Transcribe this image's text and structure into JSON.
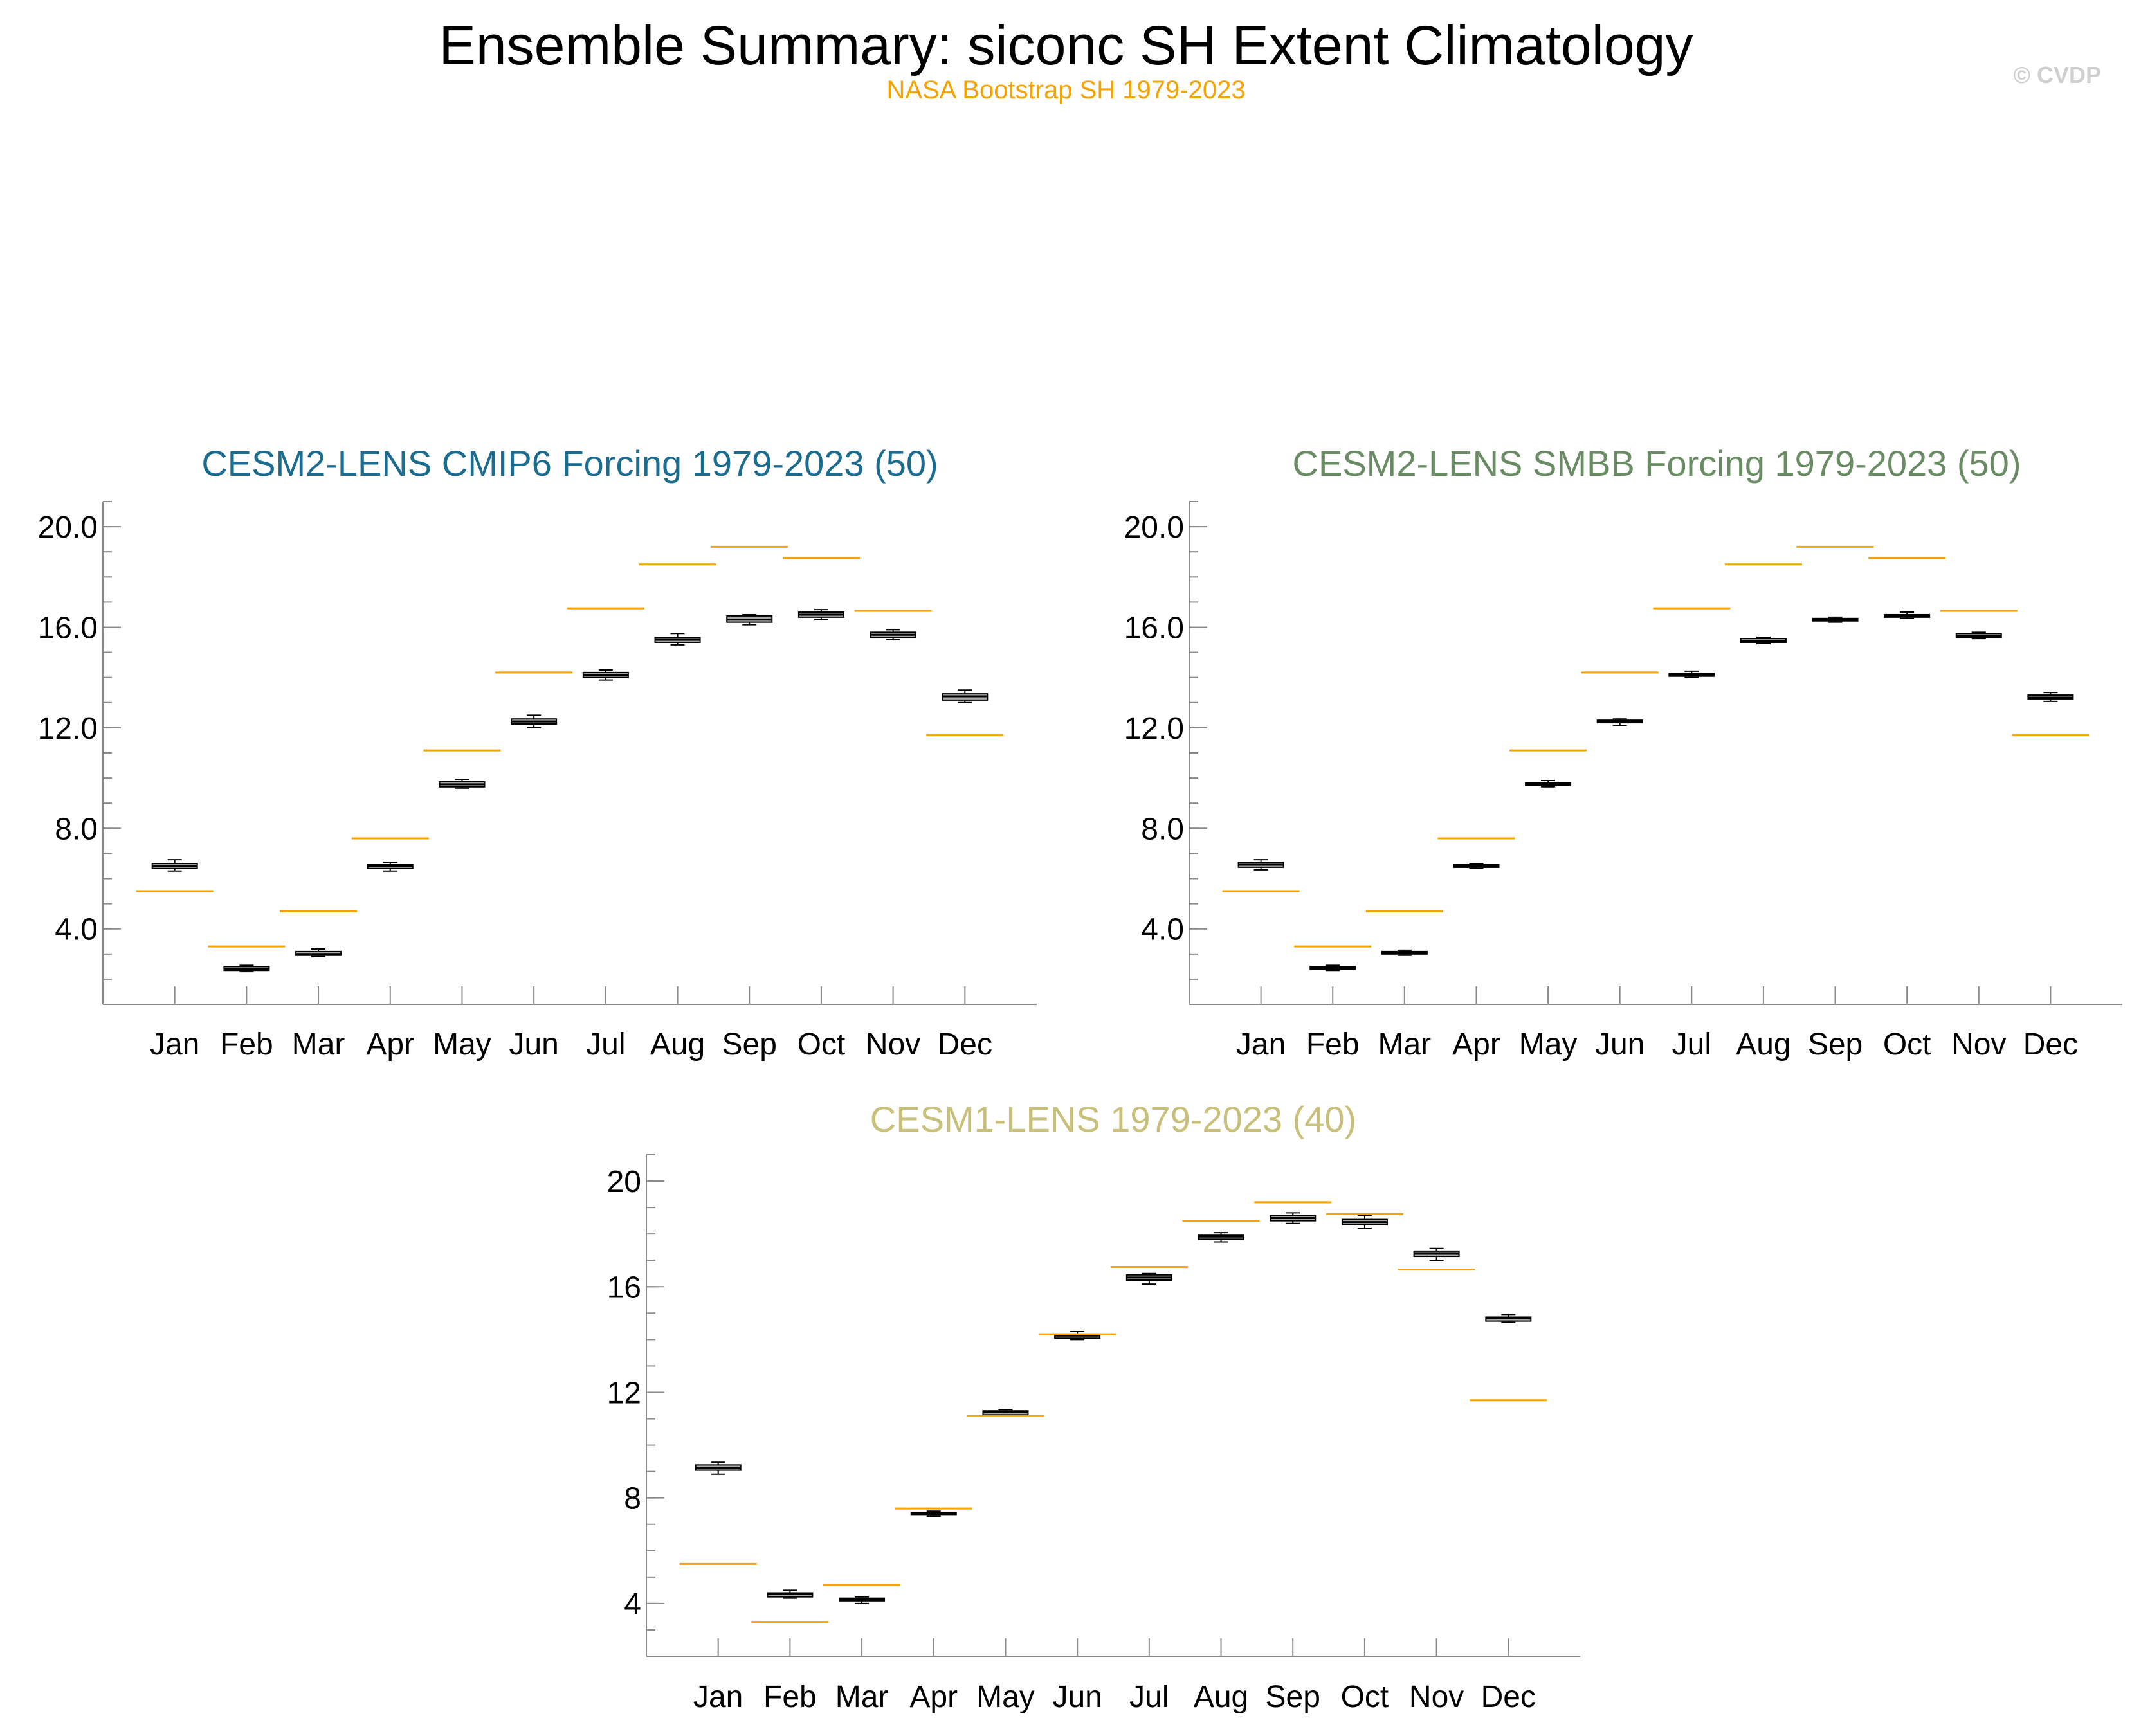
{
  "title": "Ensemble Summary: siconc SH Extent Climatology",
  "subtitle": "NASA Bootstrap SH 1979-2023",
  "watermark": "© CVDP",
  "colors": {
    "observation": "#f5a300",
    "subtitle": "#f5a300",
    "watermark": "#cfcfcf",
    "panel1_title": "#1b6c8f",
    "panel2_title": "#6a8c64",
    "panel3_title": "#c8c07a",
    "box_fill": "#a8a8a8",
    "axis": "#8a8a8a"
  },
  "chart_data": [
    {
      "type": "box",
      "title": "CESM2-LENS CMIP6 Forcing 1979-2023 (50)",
      "xlabel": "",
      "ylabel": "",
      "categories": [
        "Jan",
        "Feb",
        "Mar",
        "Apr",
        "May",
        "Jun",
        "Jul",
        "Aug",
        "Sep",
        "Oct",
        "Nov",
        "Dec"
      ],
      "ylim": [
        1.0,
        21.0
      ],
      "yticks": [
        4.0,
        8.0,
        12.0,
        16.0,
        20.0
      ],
      "ytick_labels": [
        "4.0",
        "8.0",
        "12.0",
        "16.0",
        "20.0"
      ],
      "series": [
        {
          "stat": "min",
          "values": [
            6.3,
            2.3,
            2.9,
            6.3,
            9.6,
            12.0,
            13.9,
            15.3,
            16.1,
            16.3,
            15.5,
            13.0
          ]
        },
        {
          "stat": "q1",
          "values": [
            6.4,
            2.35,
            2.95,
            6.4,
            9.65,
            12.15,
            14.0,
            15.4,
            16.2,
            16.4,
            15.6,
            13.1
          ]
        },
        {
          "stat": "median",
          "values": [
            6.5,
            2.4,
            3.0,
            6.5,
            9.75,
            12.25,
            14.1,
            15.5,
            16.3,
            16.5,
            15.7,
            13.25
          ]
        },
        {
          "stat": "q3",
          "values": [
            6.6,
            2.5,
            3.1,
            6.55,
            9.85,
            12.35,
            14.2,
            15.6,
            16.45,
            16.6,
            15.8,
            13.35
          ]
        },
        {
          "stat": "max",
          "values": [
            6.75,
            2.55,
            3.2,
            6.65,
            9.95,
            12.5,
            14.3,
            15.75,
            16.5,
            16.7,
            15.9,
            13.5
          ]
        },
        {
          "name": "NASA Bootstrap SH 1979-2023",
          "values": [
            5.5,
            3.3,
            4.7,
            7.6,
            11.1,
            14.2,
            16.75,
            18.5,
            19.2,
            18.75,
            16.65,
            11.7
          ]
        }
      ]
    },
    {
      "type": "box",
      "title": "CESM2-LENS SMBB Forcing 1979-2023 (50)",
      "xlabel": "",
      "ylabel": "",
      "categories": [
        "Jan",
        "Feb",
        "Mar",
        "Apr",
        "May",
        "Jun",
        "Jul",
        "Aug",
        "Sep",
        "Oct",
        "Nov",
        "Dec"
      ],
      "ylim": [
        1.0,
        21.0
      ],
      "yticks": [
        4.0,
        8.0,
        12.0,
        16.0,
        20.0
      ],
      "ytick_labels": [
        "4.0",
        "8.0",
        "12.0",
        "16.0",
        "20.0"
      ],
      "series": [
        {
          "stat": "min",
          "values": [
            6.35,
            2.35,
            2.95,
            6.4,
            9.65,
            12.1,
            14.0,
            15.35,
            16.2,
            16.35,
            15.55,
            13.05
          ]
        },
        {
          "stat": "q1",
          "values": [
            6.45,
            2.4,
            3.0,
            6.45,
            9.7,
            12.2,
            14.05,
            15.4,
            16.25,
            16.4,
            15.6,
            13.15
          ]
        },
        {
          "stat": "median",
          "values": [
            6.55,
            2.45,
            3.05,
            6.5,
            9.75,
            12.25,
            14.1,
            15.45,
            16.3,
            16.45,
            15.65,
            13.2
          ]
        },
        {
          "stat": "q3",
          "values": [
            6.65,
            2.5,
            3.1,
            6.55,
            9.8,
            12.3,
            14.15,
            15.55,
            16.35,
            16.5,
            15.75,
            13.3
          ]
        },
        {
          "stat": "max",
          "values": [
            6.75,
            2.55,
            3.15,
            6.6,
            9.9,
            12.35,
            14.25,
            15.6,
            16.4,
            16.6,
            15.8,
            13.4
          ]
        },
        {
          "name": "NASA Bootstrap SH 1979-2023",
          "values": [
            5.5,
            3.3,
            4.7,
            7.6,
            11.1,
            14.2,
            16.75,
            18.5,
            19.2,
            18.75,
            16.65,
            11.7
          ]
        }
      ]
    },
    {
      "type": "box",
      "title": "CESM1-LENS 1979-2023 (40)",
      "xlabel": "",
      "ylabel": "",
      "categories": [
        "Jan",
        "Feb",
        "Mar",
        "Apr",
        "May",
        "Jun",
        "Jul",
        "Aug",
        "Sep",
        "Oct",
        "Nov",
        "Dec"
      ],
      "ylim": [
        2.0,
        21.0
      ],
      "yticks": [
        4,
        8,
        12,
        16,
        20
      ],
      "ytick_labels": [
        "4",
        "8",
        "12",
        "16",
        "20"
      ],
      "series": [
        {
          "stat": "min",
          "values": [
            8.9,
            4.2,
            4.0,
            7.3,
            11.1,
            14.0,
            16.1,
            17.7,
            18.4,
            18.2,
            17.0,
            14.65
          ]
        },
        {
          "stat": "q1",
          "values": [
            9.05,
            4.25,
            4.1,
            7.35,
            11.15,
            14.05,
            16.25,
            17.8,
            18.5,
            18.35,
            17.15,
            14.7
          ]
        },
        {
          "stat": "median",
          "values": [
            9.15,
            4.35,
            4.15,
            7.4,
            11.25,
            14.15,
            16.35,
            17.9,
            18.6,
            18.45,
            17.25,
            14.8
          ]
        },
        {
          "stat": "q3",
          "values": [
            9.25,
            4.4,
            4.2,
            7.45,
            11.3,
            14.2,
            16.45,
            17.95,
            18.7,
            18.55,
            17.35,
            14.85
          ]
        },
        {
          "stat": "max",
          "values": [
            9.35,
            4.5,
            4.25,
            7.5,
            11.35,
            14.3,
            16.5,
            18.05,
            18.8,
            18.7,
            17.45,
            14.95
          ]
        },
        {
          "name": "NASA Bootstrap SH 1979-2023",
          "values": [
            5.5,
            3.3,
            4.7,
            7.6,
            11.1,
            14.2,
            16.75,
            18.5,
            19.2,
            18.75,
            16.65,
            11.7
          ]
        }
      ]
    }
  ]
}
